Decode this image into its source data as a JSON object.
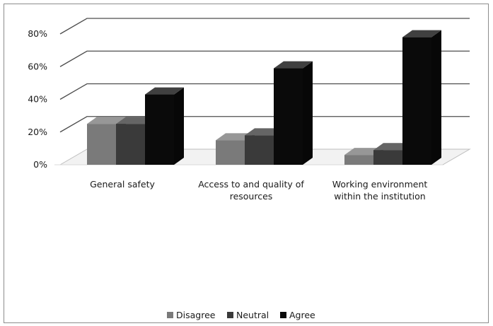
{
  "chart_data": {
    "type": "bar",
    "ylim": [
      0,
      80
    ],
    "y_ticks": [
      "0%",
      "20%",
      "40%",
      "60%",
      "80%"
    ],
    "categories": [
      [
        "General safety"
      ],
      [
        "Access to and quality of",
        "resources"
      ],
      [
        "Working environment",
        "within the institution"
      ]
    ],
    "series": [
      {
        "name": "Disagree",
        "values": [
          25,
          15,
          6
        ],
        "color": "#7a7a7a"
      },
      {
        "name": "Neutral",
        "values": [
          25,
          18,
          9
        ],
        "color": "#3a3a3a"
      },
      {
        "name": "Agree",
        "values": [
          43,
          59,
          78
        ],
        "color": "#0a0a0a"
      }
    ],
    "grid": true,
    "legend_position": "bottom"
  }
}
